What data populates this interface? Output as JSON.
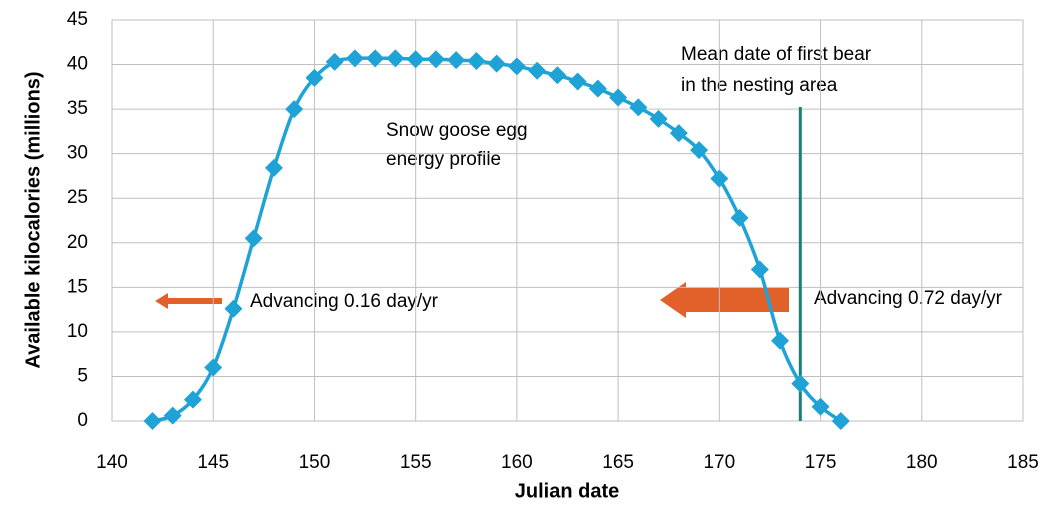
{
  "chart_data": {
    "type": "line",
    "xlabel": "Julian date",
    "ylabel": "Available kilocalories (millions)",
    "xlim": [
      140,
      185
    ],
    "xticks": [
      140,
      145,
      150,
      155,
      160,
      165,
      170,
      175,
      180,
      185
    ],
    "ylim": [
      0,
      45
    ],
    "yticks": [
      0,
      5,
      10,
      15,
      20,
      25,
      30,
      35,
      40,
      45
    ],
    "grid": true,
    "series": [
      {
        "name": "Snow goose egg energy profile",
        "color": "#1fa3d6",
        "x": [
          142,
          143,
          144,
          145,
          146,
          147,
          148,
          149,
          150,
          151,
          152,
          153,
          154,
          155,
          156,
          157,
          158,
          159,
          160,
          161,
          162,
          163,
          164,
          165,
          166,
          167,
          168,
          169,
          170,
          171,
          172,
          173,
          174,
          175,
          176
        ],
        "values": [
          0,
          0.6,
          2.4,
          6,
          12.6,
          20.5,
          28.4,
          35,
          38.5,
          40.3,
          40.7,
          40.7,
          40.7,
          40.6,
          40.6,
          40.5,
          40.4,
          40.1,
          39.8,
          39.3,
          38.8,
          38.1,
          37.3,
          36.3,
          35.2,
          33.9,
          32.3,
          30.4,
          27.2,
          22.8,
          17,
          9,
          4.2,
          1.6,
          0
        ]
      }
    ],
    "annotations": {
      "profile": [
        "Snow goose egg",
        "energy profile"
      ],
      "bear": [
        "Mean date of first bear",
        "in the nesting area"
      ],
      "early": "Advancing 0.16 day/yr",
      "late": "Advancing 0.72 day/yr"
    },
    "vline": {
      "x": 174,
      "color": "#17807e"
    }
  }
}
